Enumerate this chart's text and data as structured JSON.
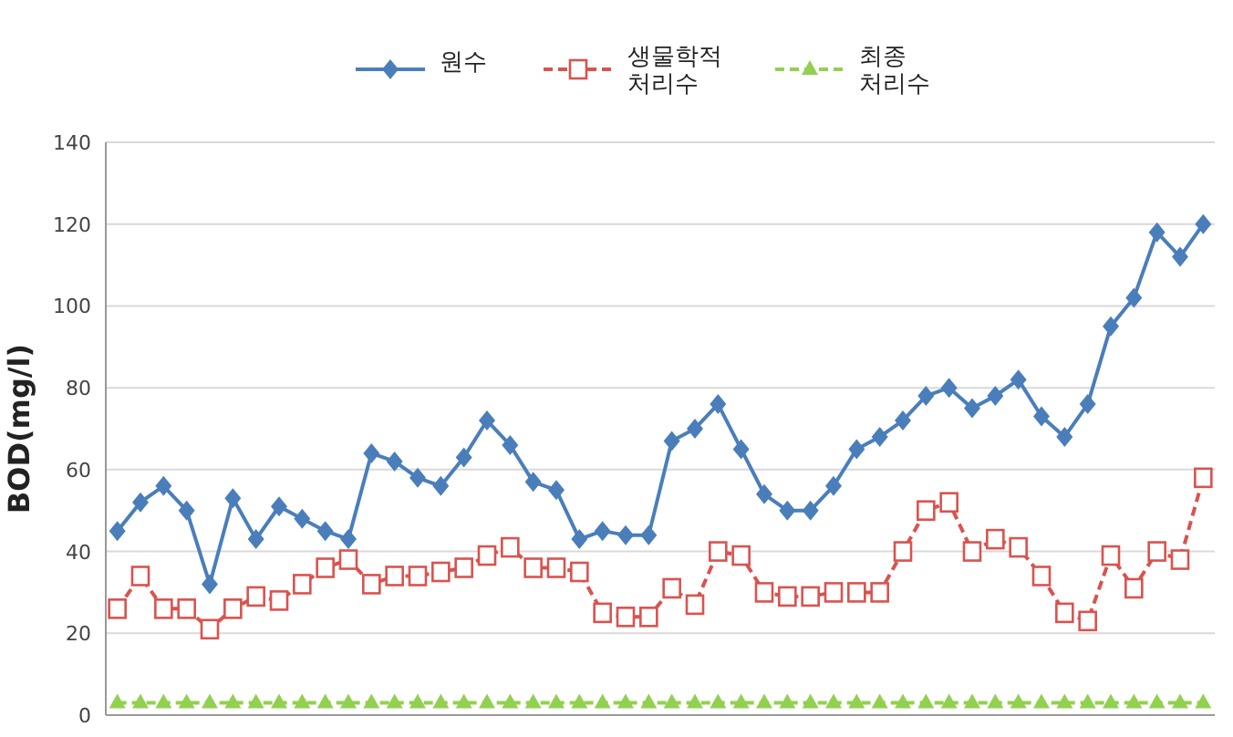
{
  "chart_data": {
    "type": "line",
    "ylabel": "BOD(mg/l)",
    "categories": [
      null,
      null,
      null,
      null,
      null,
      null,
      null,
      null,
      null,
      null,
      null,
      null,
      null,
      null,
      null,
      null,
      null,
      null,
      null,
      null,
      null,
      null,
      null,
      null,
      null,
      null,
      null,
      null,
      null,
      null,
      null,
      null,
      null,
      null,
      null,
      null,
      null,
      null,
      null,
      null,
      null,
      null,
      null,
      null,
      null,
      null,
      null,
      null
    ],
    "series": [
      {
        "name": "원수",
        "color": "#4a7ebb",
        "marker": "diamond",
        "line_style": "solid",
        "values": [
          45,
          52,
          56,
          50,
          32,
          53,
          43,
          51,
          48,
          45,
          43,
          64,
          62,
          58,
          56,
          63,
          72,
          66,
          57,
          55,
          43,
          45,
          44,
          44,
          67,
          70,
          76,
          65,
          54,
          50,
          50,
          56,
          65,
          68,
          72,
          78,
          80,
          75,
          78,
          82,
          73,
          68,
          76,
          95,
          102,
          118,
          112,
          120
        ]
      },
      {
        "name": "생물학적\n처리수",
        "color": "#d9534f",
        "marker": "square",
        "line_style": "dashed",
        "values": [
          26,
          34,
          26,
          26,
          21,
          26,
          29,
          28,
          32,
          36,
          38,
          32,
          34,
          34,
          35,
          36,
          39,
          41,
          36,
          36,
          35,
          25,
          24,
          24,
          31,
          27,
          40,
          39,
          30,
          29,
          29,
          30,
          30,
          30,
          40,
          50,
          52,
          40,
          43,
          41,
          34,
          25,
          23,
          39,
          31,
          40,
          38,
          58
        ]
      },
      {
        "name": "최종\n처리수",
        "color": "#92d050",
        "marker": "triangle",
        "line_style": "dashed",
        "values": [
          3,
          3,
          3,
          3,
          3,
          3,
          3,
          3,
          3,
          3,
          3,
          3,
          3,
          3,
          3,
          3,
          3,
          3,
          3,
          3,
          3,
          3,
          3,
          3,
          3,
          3,
          3,
          3,
          3,
          3,
          3,
          3,
          3,
          3,
          3,
          3,
          3,
          3,
          3,
          3,
          3,
          3,
          3,
          3,
          3,
          3,
          3,
          3
        ]
      }
    ],
    "ylim": [
      0,
      140
    ],
    "yticks": [
      0,
      20,
      40,
      60,
      80,
      100,
      120,
      140
    ],
    "grid": "y",
    "legend": "top"
  }
}
